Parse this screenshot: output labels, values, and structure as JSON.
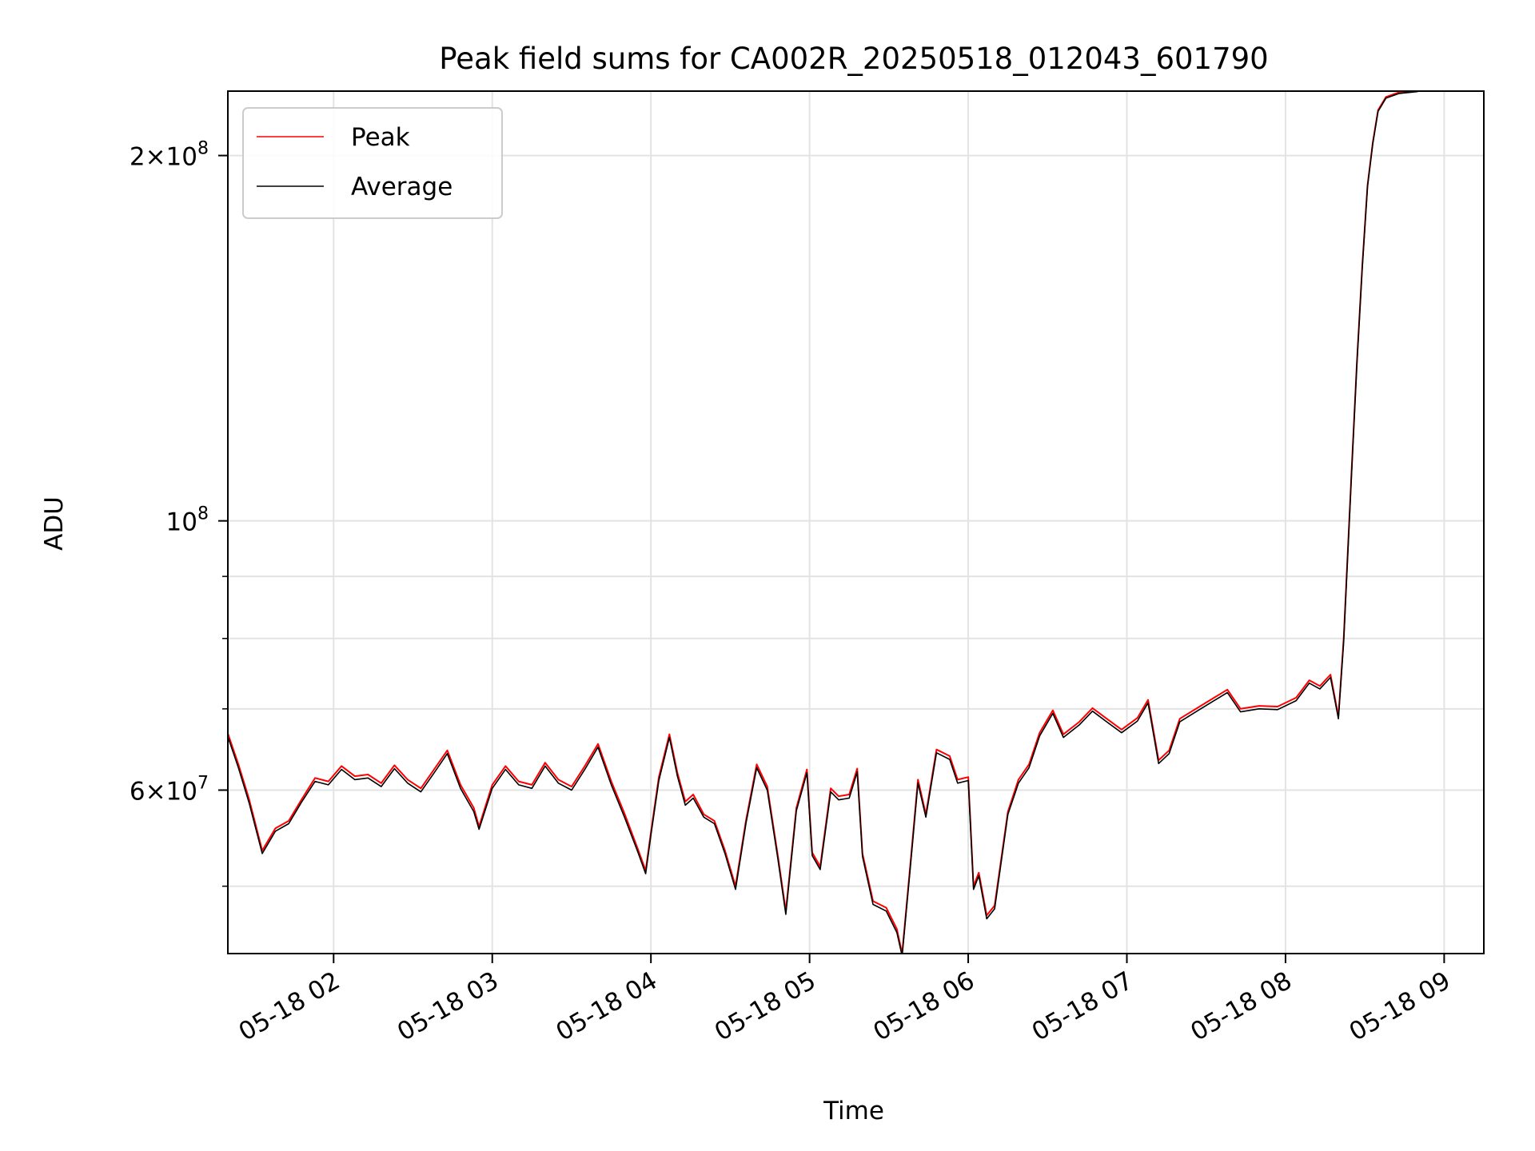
{
  "chart_data": {
    "type": "line",
    "title": "Peak field sums for CA002R_20250518_012043_601790",
    "xlabel": "Time",
    "ylabel": "ADU",
    "x_unit": "time (MM-DD HH, 2025-05-18)",
    "y_scale": "log",
    "grid": true,
    "legend_position": "top-left",
    "xlim": [
      "05-18 01:20",
      "05-18 09:15"
    ],
    "ylim": [
      44000000,
      226000000
    ],
    "x_ticks": [
      {
        "time": "05-18 02:00",
        "label": "05-18 02"
      },
      {
        "time": "05-18 03:00",
        "label": "05-18 03"
      },
      {
        "time": "05-18 04:00",
        "label": "05-18 04"
      },
      {
        "time": "05-18 05:00",
        "label": "05-18 05"
      },
      {
        "time": "05-18 06:00",
        "label": "05-18 06"
      },
      {
        "time": "05-18 07:00",
        "label": "05-18 07"
      },
      {
        "time": "05-18 08:00",
        "label": "05-18 08"
      },
      {
        "time": "05-18 09:00",
        "label": "05-18 09"
      }
    ],
    "y_major_ticks": [
      {
        "value": 60000000,
        "mantissa": "6",
        "exponent": "7"
      },
      {
        "value": 100000000,
        "mantissa": "",
        "exponent": "8"
      },
      {
        "value": 200000000,
        "mantissa": "2",
        "exponent": "8"
      }
    ],
    "y_minor_ticks": [
      50000000,
      70000000,
      80000000,
      90000000
    ],
    "series": [
      {
        "name": "Peak",
        "color": "#ff0000",
        "points": [
          [
            "05-18 01:20",
            66800000
          ],
          [
            "05-18 01:24",
            63000000
          ],
          [
            "05-18 01:28",
            59000000
          ],
          [
            "05-18 01:33",
            53500000
          ],
          [
            "05-18 01:38",
            55800000
          ],
          [
            "05-18 01:43",
            56600000
          ],
          [
            "05-18 01:48",
            59000000
          ],
          [
            "05-18 01:53",
            61400000
          ],
          [
            "05-18 01:58",
            61000000
          ],
          [
            "05-18 02:03",
            62800000
          ],
          [
            "05-18 02:08",
            61600000
          ],
          [
            "05-18 02:13",
            61800000
          ],
          [
            "05-18 02:18",
            60800000
          ],
          [
            "05-18 02:23",
            62900000
          ],
          [
            "05-18 02:28",
            61200000
          ],
          [
            "05-18 02:33",
            60200000
          ],
          [
            "05-18 02:38",
            62400000
          ],
          [
            "05-18 02:43",
            64700000
          ],
          [
            "05-18 02:48",
            60600000
          ],
          [
            "05-18 02:53",
            58000000
          ],
          [
            "05-18 02:55",
            56000000
          ],
          [
            "05-18 03:00",
            60600000
          ],
          [
            "05-18 03:05",
            62800000
          ],
          [
            "05-18 03:10",
            61000000
          ],
          [
            "05-18 03:15",
            60600000
          ],
          [
            "05-18 03:20",
            63200000
          ],
          [
            "05-18 03:25",
            61200000
          ],
          [
            "05-18 03:30",
            60400000
          ],
          [
            "05-18 03:35",
            62800000
          ],
          [
            "05-18 03:40",
            65500000
          ],
          [
            "05-18 03:45",
            61000000
          ],
          [
            "05-18 03:50",
            57400000
          ],
          [
            "05-18 03:55",
            53700000
          ],
          [
            "05-18 03:58",
            51500000
          ],
          [
            "05-18 04:00",
            55400000
          ],
          [
            "05-18 04:03",
            61500000
          ],
          [
            "05-18 04:07",
            66700000
          ],
          [
            "05-18 04:10",
            62000000
          ],
          [
            "05-18 04:13",
            58700000
          ],
          [
            "05-18 04:16",
            59500000
          ],
          [
            "05-18 04:20",
            57300000
          ],
          [
            "05-18 04:24",
            56600000
          ],
          [
            "05-18 04:28",
            53500000
          ],
          [
            "05-18 04:32",
            50000000
          ],
          [
            "05-18 04:36",
            56700000
          ],
          [
            "05-18 04:40",
            63000000
          ],
          [
            "05-18 04:44",
            60400000
          ],
          [
            "05-18 04:48",
            53000000
          ],
          [
            "05-18 04:51",
            47700000
          ],
          [
            "05-18 04:55",
            58000000
          ],
          [
            "05-18 04:59",
            62400000
          ],
          [
            "05-18 05:01",
            53300000
          ],
          [
            "05-18 05:04",
            51900000
          ],
          [
            "05-18 05:08",
            60200000
          ],
          [
            "05-18 05:11",
            59300000
          ],
          [
            "05-18 05:15",
            59500000
          ],
          [
            "05-18 05:18",
            62500000
          ],
          [
            "05-18 05:20",
            53200000
          ],
          [
            "05-18 05:24",
            48600000
          ],
          [
            "05-18 05:29",
            48000000
          ],
          [
            "05-18 05:33",
            46100000
          ],
          [
            "05-18 05:35",
            44000000
          ],
          [
            "05-18 05:38",
            51800000
          ],
          [
            "05-18 05:41",
            61200000
          ],
          [
            "05-18 05:44",
            57300000
          ],
          [
            "05-18 05:48",
            64800000
          ],
          [
            "05-18 05:53",
            64000000
          ],
          [
            "05-18 05:56",
            61200000
          ],
          [
            "05-18 06:00",
            61500000
          ],
          [
            "05-18 06:02",
            50000000
          ],
          [
            "05-18 06:04",
            51300000
          ],
          [
            "05-18 06:07",
            47300000
          ],
          [
            "05-18 06:10",
            48200000
          ],
          [
            "05-18 06:15",
            57600000
          ],
          [
            "05-18 06:19",
            61200000
          ],
          [
            "05-18 06:23",
            63000000
          ],
          [
            "05-18 06:27",
            66900000
          ],
          [
            "05-18 06:32",
            69800000
          ],
          [
            "05-18 06:36",
            66700000
          ],
          [
            "05-18 06:42",
            68300000
          ],
          [
            "05-18 06:47",
            70100000
          ],
          [
            "05-18 06:52",
            68800000
          ],
          [
            "05-18 06:58",
            67300000
          ],
          [
            "05-18 07:04",
            68800000
          ],
          [
            "05-18 07:08",
            71200000
          ],
          [
            "05-18 07:12",
            63500000
          ],
          [
            "05-18 07:16",
            64700000
          ],
          [
            "05-18 07:20",
            68700000
          ],
          [
            "05-18 07:27",
            70200000
          ],
          [
            "05-18 07:33",
            71500000
          ],
          [
            "05-18 07:38",
            72600000
          ],
          [
            "05-18 07:43",
            70000000
          ],
          [
            "05-18 07:50",
            70400000
          ],
          [
            "05-18 07:57",
            70300000
          ],
          [
            "05-18 08:04",
            71500000
          ],
          [
            "05-18 08:09",
            73900000
          ],
          [
            "05-18 08:13",
            73100000
          ],
          [
            "05-18 08:17",
            74700000
          ],
          [
            "05-18 08:20",
            69000000
          ],
          [
            "05-18 08:22",
            80000000
          ],
          [
            "05-18 08:25",
            110000000
          ],
          [
            "05-18 08:27",
            135000000
          ],
          [
            "05-18 08:29",
            162000000
          ],
          [
            "05-18 08:31",
            189000000
          ],
          [
            "05-18 08:33",
            205000000
          ],
          [
            "05-18 08:35",
            218000000
          ],
          [
            "05-18 08:38",
            223500000
          ],
          [
            "05-18 08:43",
            225500000
          ],
          [
            "05-18 08:50",
            226000000
          ]
        ]
      },
      {
        "name": "Average",
        "color": "#000000",
        "points": [
          [
            "05-18 01:20",
            66400000
          ],
          [
            "05-18 01:24",
            62600000
          ],
          [
            "05-18 01:28",
            58600000
          ],
          [
            "05-18 01:33",
            53200000
          ],
          [
            "05-18 01:38",
            55500000
          ],
          [
            "05-18 01:43",
            56300000
          ],
          [
            "05-18 01:48",
            58700000
          ],
          [
            "05-18 01:53",
            61000000
          ],
          [
            "05-18 01:58",
            60600000
          ],
          [
            "05-18 02:03",
            62400000
          ],
          [
            "05-18 02:08",
            61200000
          ],
          [
            "05-18 02:13",
            61400000
          ],
          [
            "05-18 02:18",
            60400000
          ],
          [
            "05-18 02:23",
            62500000
          ],
          [
            "05-18 02:28",
            60800000
          ],
          [
            "05-18 02:33",
            59800000
          ],
          [
            "05-18 02:38",
            62000000
          ],
          [
            "05-18 02:43",
            64300000
          ],
          [
            "05-18 02:48",
            60200000
          ],
          [
            "05-18 02:53",
            57600000
          ],
          [
            "05-18 02:55",
            55700000
          ],
          [
            "05-18 03:00",
            60200000
          ],
          [
            "05-18 03:05",
            62400000
          ],
          [
            "05-18 03:10",
            60600000
          ],
          [
            "05-18 03:15",
            60200000
          ],
          [
            "05-18 03:20",
            62800000
          ],
          [
            "05-18 03:25",
            60800000
          ],
          [
            "05-18 03:30",
            60000000
          ],
          [
            "05-18 03:35",
            62400000
          ],
          [
            "05-18 03:40",
            65100000
          ],
          [
            "05-18 03:45",
            60600000
          ],
          [
            "05-18 03:50",
            57000000
          ],
          [
            "05-18 03:55",
            53400000
          ],
          [
            "05-18 03:58",
            51200000
          ],
          [
            "05-18 04:00",
            55100000
          ],
          [
            "05-18 04:03",
            61100000
          ],
          [
            "05-18 04:07",
            66300000
          ],
          [
            "05-18 04:10",
            61600000
          ],
          [
            "05-18 04:13",
            58300000
          ],
          [
            "05-18 04:16",
            59100000
          ],
          [
            "05-18 04:20",
            57000000
          ],
          [
            "05-18 04:24",
            56300000
          ],
          [
            "05-18 04:28",
            53200000
          ],
          [
            "05-18 04:32",
            49700000
          ],
          [
            "05-18 04:36",
            56400000
          ],
          [
            "05-18 04:40",
            62600000
          ],
          [
            "05-18 04:44",
            60000000
          ],
          [
            "05-18 04:48",
            52700000
          ],
          [
            "05-18 04:51",
            47400000
          ],
          [
            "05-18 04:55",
            57700000
          ],
          [
            "05-18 04:59",
            62000000
          ],
          [
            "05-18 05:01",
            53000000
          ],
          [
            "05-18 05:04",
            51600000
          ],
          [
            "05-18 05:08",
            59800000
          ],
          [
            "05-18 05:11",
            58900000
          ],
          [
            "05-18 05:15",
            59100000
          ],
          [
            "05-18 05:18",
            62100000
          ],
          [
            "05-18 05:20",
            52900000
          ],
          [
            "05-18 05:24",
            48300000
          ],
          [
            "05-18 05:29",
            47700000
          ],
          [
            "05-18 05:33",
            45800000
          ],
          [
            "05-18 05:35",
            43800000
          ],
          [
            "05-18 05:38",
            51500000
          ],
          [
            "05-18 05:41",
            60800000
          ],
          [
            "05-18 05:44",
            57000000
          ],
          [
            "05-18 05:48",
            64400000
          ],
          [
            "05-18 05:53",
            63600000
          ],
          [
            "05-18 05:56",
            60800000
          ],
          [
            "05-18 06:00",
            61100000
          ],
          [
            "05-18 06:02",
            49700000
          ],
          [
            "05-18 06:04",
            51000000
          ],
          [
            "05-18 06:07",
            47000000
          ],
          [
            "05-18 06:10",
            47900000
          ],
          [
            "05-18 06:15",
            57300000
          ],
          [
            "05-18 06:19",
            60800000
          ],
          [
            "05-18 06:23",
            62600000
          ],
          [
            "05-18 06:27",
            66500000
          ],
          [
            "05-18 06:32",
            69400000
          ],
          [
            "05-18 06:36",
            66300000
          ],
          [
            "05-18 06:42",
            67900000
          ],
          [
            "05-18 06:47",
            69700000
          ],
          [
            "05-18 06:52",
            68400000
          ],
          [
            "05-18 06:58",
            66900000
          ],
          [
            "05-18 07:04",
            68400000
          ],
          [
            "05-18 07:08",
            70800000
          ],
          [
            "05-18 07:12",
            63100000
          ],
          [
            "05-18 07:16",
            64300000
          ],
          [
            "05-18 07:20",
            68300000
          ],
          [
            "05-18 07:27",
            69800000
          ],
          [
            "05-18 07:33",
            71100000
          ],
          [
            "05-18 07:38",
            72200000
          ],
          [
            "05-18 07:43",
            69600000
          ],
          [
            "05-18 07:50",
            70000000
          ],
          [
            "05-18 07:57",
            69900000
          ],
          [
            "05-18 08:04",
            71100000
          ],
          [
            "05-18 08:09",
            73500000
          ],
          [
            "05-18 08:13",
            72700000
          ],
          [
            "05-18 08:17",
            74300000
          ],
          [
            "05-18 08:20",
            68700000
          ],
          [
            "05-18 08:22",
            79500000
          ],
          [
            "05-18 08:25",
            109500000
          ],
          [
            "05-18 08:27",
            134500000
          ],
          [
            "05-18 08:29",
            161500000
          ],
          [
            "05-18 08:31",
            188500000
          ],
          [
            "05-18 08:33",
            204500000
          ],
          [
            "05-18 08:35",
            217500000
          ],
          [
            "05-18 08:38",
            223000000
          ],
          [
            "05-18 08:43",
            225000000
          ],
          [
            "05-18 08:50",
            225800000
          ]
        ]
      }
    ]
  }
}
